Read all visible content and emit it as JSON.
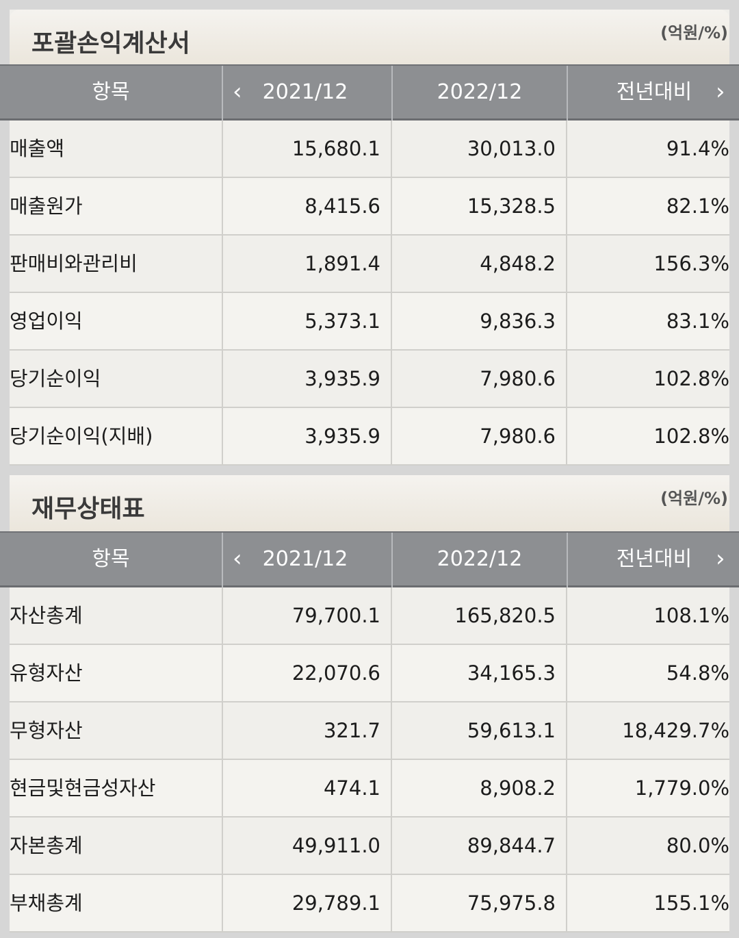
{
  "income_statement": {
    "title": "포괄손익계산서",
    "unit": "(억원/%)",
    "headers": {
      "item": "항목",
      "col1": "2021/12",
      "col2": "2022/12",
      "col3": "전년대비"
    },
    "rows": [
      {
        "label": "매출액",
        "v2021": "15,680.1",
        "v2022": "30,013.0",
        "yoy": "91.4%"
      },
      {
        "label": "매출원가",
        "v2021": "8,415.6",
        "v2022": "15,328.5",
        "yoy": "82.1%"
      },
      {
        "label": "판매비와관리비",
        "v2021": "1,891.4",
        "v2022": "4,848.2",
        "yoy": "156.3%"
      },
      {
        "label": "영업이익",
        "v2021": "5,373.1",
        "v2022": "9,836.3",
        "yoy": "83.1%"
      },
      {
        "label": "당기순이익",
        "v2021": "3,935.9",
        "v2022": "7,980.6",
        "yoy": "102.8%"
      },
      {
        "label": "당기순이익(지배)",
        "v2021": "3,935.9",
        "v2022": "7,980.6",
        "yoy": "102.8%"
      }
    ]
  },
  "balance_sheet": {
    "title": "재무상태표",
    "unit": "(억원/%)",
    "headers": {
      "item": "항목",
      "col1": "2021/12",
      "col2": "2022/12",
      "col3": "전년대비"
    },
    "rows": [
      {
        "label": "자산총계",
        "v2021": "79,700.1",
        "v2022": "165,820.5",
        "yoy": "108.1%"
      },
      {
        "label": "유형자산",
        "v2021": "22,070.6",
        "v2022": "34,165.3",
        "yoy": "54.8%"
      },
      {
        "label": "무형자산",
        "v2021": "321.7",
        "v2022": "59,613.1",
        "yoy": "18,429.7%"
      },
      {
        "label": "현금및현금성자산",
        "v2021": "474.1",
        "v2022": "8,908.2",
        "yoy": "1,779.0%"
      },
      {
        "label": "자본총계",
        "v2021": "49,911.0",
        "v2022": "89,844.7",
        "yoy": "80.0%"
      },
      {
        "label": "부채총계",
        "v2021": "29,789.1",
        "v2022": "75,975.8",
        "yoy": "155.1%"
      }
    ]
  },
  "icons": {
    "prev": "chevron-left-icon",
    "next": "chevron-right-icon"
  }
}
